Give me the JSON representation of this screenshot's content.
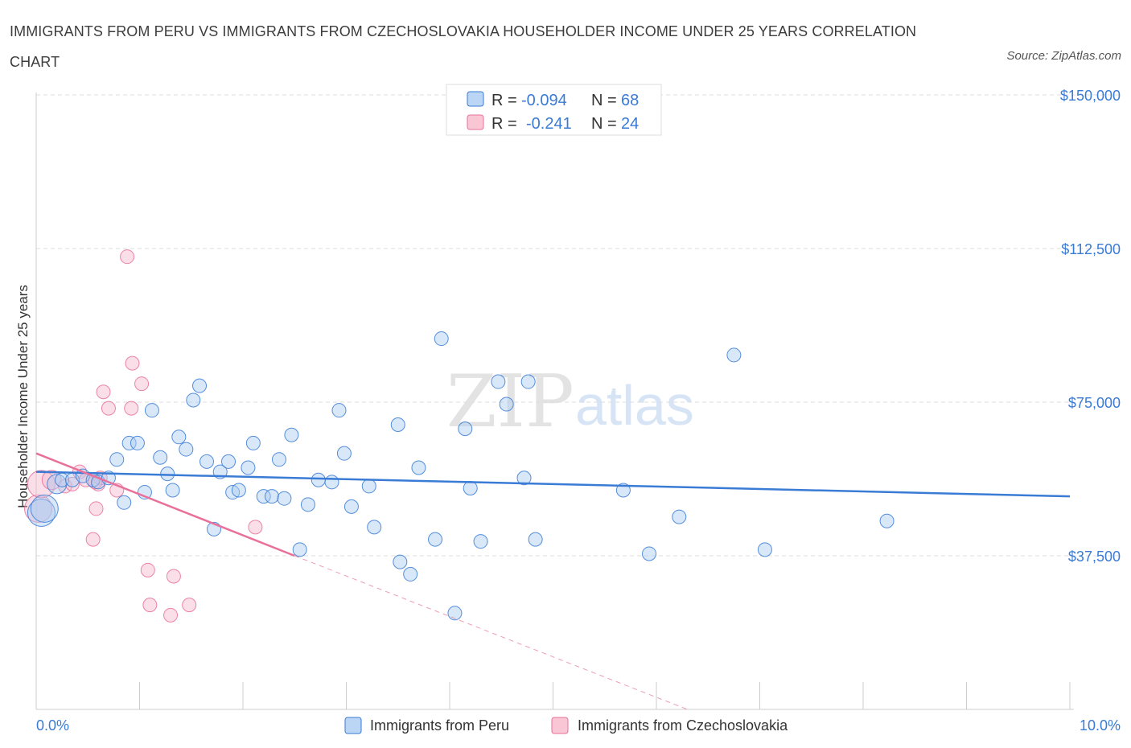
{
  "title": "IMMIGRANTS FROM PERU VS IMMIGRANTS FROM CZECHOSLOVAKIA HOUSEHOLDER INCOME UNDER 25 YEARS CORRELATION CHART",
  "source": "Source: ZipAtlas.com",
  "watermark": {
    "zip": "ZIP",
    "atlas": "atlas"
  },
  "colors": {
    "blue": "#3a7bd5",
    "blue_fill": "#aaccf2",
    "pink": "#e8709a",
    "pink_fill": "#f6b8cb",
    "grid": "#dddddd"
  },
  "legend_box": {
    "rows": [
      {
        "r_label": "R =",
        "r_value": "-0.094",
        "n_label": "N =",
        "n_value": "68"
      },
      {
        "r_label": "R =",
        "r_value": "-0.241",
        "n_label": "N =",
        "n_value": "24"
      }
    ]
  },
  "chart_data": {
    "type": "scatter",
    "title": "IMMIGRANTS FROM PERU VS IMMIGRANTS FROM CZECHOSLOVAKIA HOUSEHOLDER INCOME UNDER 25 YEARS CORRELATION CHART",
    "xlabel": "",
    "ylabel": "Householder Income Under 25 years",
    "xlim": [
      0,
      10
    ],
    "ylim": [
      0,
      150000
    ],
    "x_tick_labels": [
      "0.0%",
      "10.0%"
    ],
    "y_ticks": [
      37500,
      75000,
      112500,
      150000
    ],
    "y_tick_labels": [
      "$37,500",
      "$75,000",
      "$112,500",
      "$150,000"
    ],
    "grid": true,
    "legend_placement": "bottom",
    "series": [
      {
        "name": "Immigrants from Peru",
        "color": "#3a7bd5",
        "r": -0.094,
        "n": 68,
        "trend": {
          "x": [
            0,
            10
          ],
          "y": [
            58000,
            52000
          ]
        },
        "points": [
          {
            "x": 0.05,
            "y": 48000,
            "s": 3
          },
          {
            "x": 0.08,
            "y": 49000,
            "s": 3
          },
          {
            "x": 0.2,
            "y": 55000,
            "s": 2
          },
          {
            "x": 0.25,
            "y": 56000,
            "s": 1
          },
          {
            "x": 0.35,
            "y": 56000,
            "s": 1
          },
          {
            "x": 0.45,
            "y": 57000,
            "s": 1
          },
          {
            "x": 0.55,
            "y": 56000,
            "s": 1
          },
          {
            "x": 0.6,
            "y": 55500,
            "s": 1
          },
          {
            "x": 0.7,
            "y": 56500,
            "s": 1
          },
          {
            "x": 0.78,
            "y": 61000,
            "s": 1
          },
          {
            "x": 0.85,
            "y": 50500,
            "s": 1
          },
          {
            "x": 0.9,
            "y": 65000,
            "s": 1
          },
          {
            "x": 0.98,
            "y": 65000,
            "s": 1
          },
          {
            "x": 1.05,
            "y": 53000,
            "s": 1
          },
          {
            "x": 1.12,
            "y": 73000,
            "s": 1
          },
          {
            "x": 1.2,
            "y": 61500,
            "s": 1
          },
          {
            "x": 1.27,
            "y": 57500,
            "s": 1
          },
          {
            "x": 1.32,
            "y": 53500,
            "s": 1
          },
          {
            "x": 1.38,
            "y": 66500,
            "s": 1
          },
          {
            "x": 1.45,
            "y": 63500,
            "s": 1
          },
          {
            "x": 1.52,
            "y": 75500,
            "s": 1
          },
          {
            "x": 1.58,
            "y": 79000,
            "s": 1
          },
          {
            "x": 1.65,
            "y": 60500,
            "s": 1
          },
          {
            "x": 1.72,
            "y": 44000,
            "s": 1
          },
          {
            "x": 1.78,
            "y": 58000,
            "s": 1
          },
          {
            "x": 1.86,
            "y": 60500,
            "s": 1
          },
          {
            "x": 1.9,
            "y": 53000,
            "s": 1
          },
          {
            "x": 1.96,
            "y": 53500,
            "s": 1
          },
          {
            "x": 2.05,
            "y": 59000,
            "s": 1
          },
          {
            "x": 2.1,
            "y": 65000,
            "s": 1
          },
          {
            "x": 2.2,
            "y": 52000,
            "s": 1
          },
          {
            "x": 2.28,
            "y": 52000,
            "s": 1
          },
          {
            "x": 2.35,
            "y": 61000,
            "s": 1
          },
          {
            "x": 2.4,
            "y": 51500,
            "s": 1
          },
          {
            "x": 2.47,
            "y": 67000,
            "s": 1
          },
          {
            "x": 2.55,
            "y": 39000,
            "s": 1
          },
          {
            "x": 2.63,
            "y": 50000,
            "s": 1
          },
          {
            "x": 2.73,
            "y": 56000,
            "s": 1
          },
          {
            "x": 2.86,
            "y": 55500,
            "s": 1
          },
          {
            "x": 2.93,
            "y": 73000,
            "s": 1
          },
          {
            "x": 2.98,
            "y": 62500,
            "s": 1
          },
          {
            "x": 3.05,
            "y": 49500,
            "s": 1
          },
          {
            "x": 3.22,
            "y": 54500,
            "s": 1
          },
          {
            "x": 3.27,
            "y": 44500,
            "s": 1
          },
          {
            "x": 3.5,
            "y": 69500,
            "s": 1
          },
          {
            "x": 3.52,
            "y": 36000,
            "s": 1
          },
          {
            "x": 3.62,
            "y": 33000,
            "s": 1
          },
          {
            "x": 3.7,
            "y": 59000,
            "s": 1
          },
          {
            "x": 3.86,
            "y": 41500,
            "s": 1
          },
          {
            "x": 3.92,
            "y": 90500,
            "s": 1
          },
          {
            "x": 4.05,
            "y": 23500,
            "s": 1
          },
          {
            "x": 4.15,
            "y": 68500,
            "s": 1
          },
          {
            "x": 4.2,
            "y": 54000,
            "s": 1
          },
          {
            "x": 4.3,
            "y": 41000,
            "s": 1
          },
          {
            "x": 4.47,
            "y": 80000,
            "s": 1
          },
          {
            "x": 4.55,
            "y": 74500,
            "s": 1
          },
          {
            "x": 4.72,
            "y": 56500,
            "s": 1
          },
          {
            "x": 4.76,
            "y": 80000,
            "s": 1
          },
          {
            "x": 4.83,
            "y": 41500,
            "s": 1
          },
          {
            "x": 5.68,
            "y": 53500,
            "s": 1
          },
          {
            "x": 5.93,
            "y": 38000,
            "s": 1
          },
          {
            "x": 6.22,
            "y": 47000,
            "s": 1
          },
          {
            "x": 6.75,
            "y": 86500,
            "s": 1
          },
          {
            "x": 7.05,
            "y": 39000,
            "s": 1
          },
          {
            "x": 8.23,
            "y": 46000,
            "s": 1
          }
        ]
      },
      {
        "name": "Immigrants from Czechoslovakia",
        "color": "#e8709a",
        "r": -0.241,
        "n": 24,
        "trend": {
          "x": [
            0,
            2.5
          ],
          "y": [
            62500,
            37500
          ]
        },
        "trend_extension": {
          "x": [
            2.5,
            6.3
          ],
          "y": [
            37500,
            0
          ]
        },
        "points": [
          {
            "x": 0.02,
            "y": 49000,
            "s": 3
          },
          {
            "x": 0.05,
            "y": 55000,
            "s": 3
          },
          {
            "x": 0.15,
            "y": 56000,
            "s": 2
          },
          {
            "x": 0.28,
            "y": 54500,
            "s": 1
          },
          {
            "x": 0.35,
            "y": 55000,
            "s": 1
          },
          {
            "x": 0.42,
            "y": 58000,
            "s": 1
          },
          {
            "x": 0.48,
            "y": 56000,
            "s": 1
          },
          {
            "x": 0.55,
            "y": 41500,
            "s": 1
          },
          {
            "x": 0.6,
            "y": 55000,
            "s": 1
          },
          {
            "x": 0.62,
            "y": 56500,
            "s": 1
          },
          {
            "x": 0.57,
            "y": 55500,
            "s": 1
          },
          {
            "x": 0.58,
            "y": 49000,
            "s": 1
          },
          {
            "x": 0.65,
            "y": 77500,
            "s": 1
          },
          {
            "x": 0.7,
            "y": 73500,
            "s": 1
          },
          {
            "x": 0.78,
            "y": 53500,
            "s": 1
          },
          {
            "x": 0.88,
            "y": 110500,
            "s": 1
          },
          {
            "x": 0.92,
            "y": 73500,
            "s": 1
          },
          {
            "x": 0.93,
            "y": 84500,
            "s": 1
          },
          {
            "x": 1.02,
            "y": 79500,
            "s": 1
          },
          {
            "x": 1.08,
            "y": 34000,
            "s": 1
          },
          {
            "x": 1.1,
            "y": 25500,
            "s": 1
          },
          {
            "x": 1.3,
            "y": 23000,
            "s": 1
          },
          {
            "x": 1.33,
            "y": 32500,
            "s": 1
          },
          {
            "x": 1.48,
            "y": 25500,
            "s": 1
          },
          {
            "x": 2.12,
            "y": 44500,
            "s": 1
          }
        ]
      }
    ]
  }
}
